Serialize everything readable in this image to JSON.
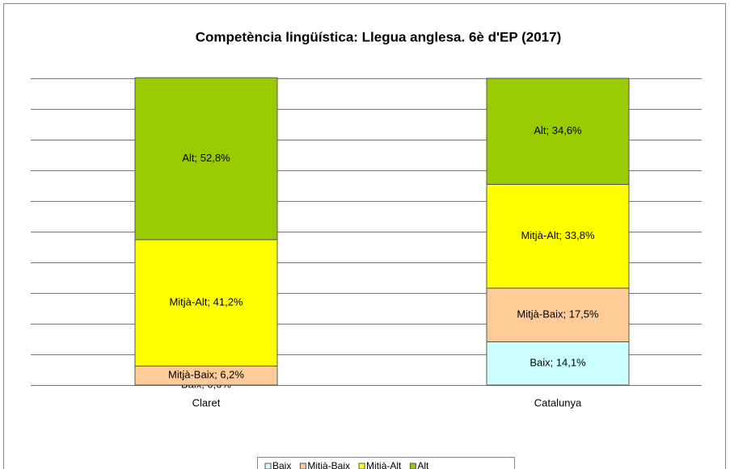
{
  "chart_data": {
    "type": "stacked_bar",
    "title": "Competència  lingüística: Llegua anglesa. 6è d'EP (2017)",
    "categories": [
      "Claret",
      "Catalunya"
    ],
    "series": [
      {
        "name": "Baix",
        "color": "#ccffff",
        "values": [
          0,
          14.1
        ],
        "value_labels": [
          "Baix; 0,0%",
          "Baix; 14,1%"
        ]
      },
      {
        "name": "Mitjà-Baix",
        "color": "#ffcc99",
        "values": [
          6.2,
          17.5
        ],
        "value_labels": [
          "Mitjà-Baix; 6,2%",
          "Mitjà-Baix; 17,5%"
        ]
      },
      {
        "name": "Mitjà-Alt",
        "color": "#ffff00",
        "values": [
          41.2,
          33.8
        ],
        "value_labels": [
          "Mitjà-Alt; 41,2%",
          "Mitjà-Alt; 33,8%"
        ]
      },
      {
        "name": "Alt",
        "color": "#99cc00",
        "values": [
          52.8,
          34.6
        ],
        "value_labels": [
          "Alt; 52,8%",
          "Alt; 34,6%"
        ]
      }
    ],
    "ylim": [
      0,
      100
    ],
    "yticks": [
      0,
      10,
      20,
      30,
      40,
      50,
      60,
      70,
      80,
      90,
      100
    ],
    "grid": true,
    "legend": "bottom"
  }
}
